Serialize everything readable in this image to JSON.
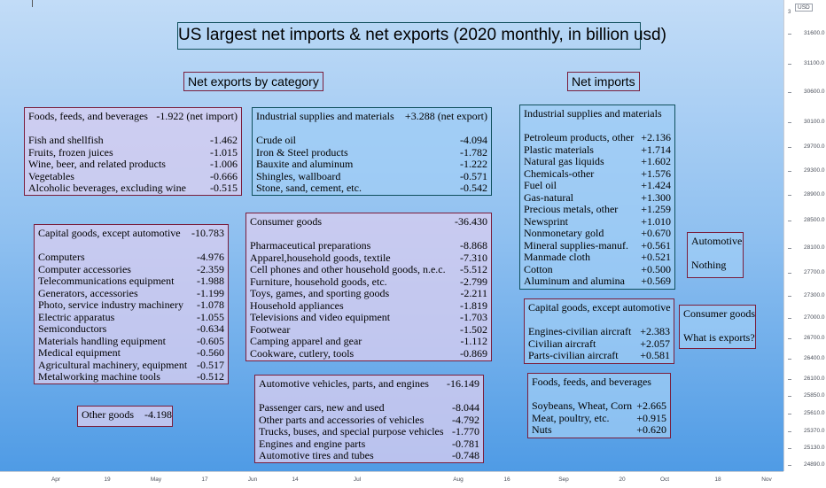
{
  "title": "US largest net imports & net exports (2020 monthly, in billion usd)",
  "sections": {
    "exports": "Net exports by category",
    "imports": "Net imports"
  },
  "price_axis": {
    "currency": "USD",
    "top": "3",
    "ticks": [
      "31600.0",
      "31100.0",
      "30600.0",
      "30100.0",
      "29700.0",
      "29300.0",
      "28900.0",
      "28500.0",
      "28100.0",
      "27700.0",
      "27300.0",
      "27000.0",
      "26700.0",
      "26400.0",
      "26100.0",
      "25850.0",
      "25610.0",
      "25370.0",
      "25130.0",
      "24890.0"
    ]
  },
  "time_axis": {
    "ticks": [
      "Apr",
      "19",
      "May",
      "17",
      "Jun",
      "14",
      "Jul",
      "Aug",
      "16",
      "Sep",
      "20",
      "Oct",
      "18",
      "Nov"
    ]
  },
  "boxes": {
    "foods_export": {
      "header": {
        "name": "Foods, feeds, and beverages",
        "value": "-1.922 (net import)"
      },
      "rows": [
        {
          "name": "Fish and shellfish",
          "value": "-1.462"
        },
        {
          "name": "Fruits, frozen juices",
          "value": "-1.015"
        },
        {
          "name": "Wine, beer, and related products",
          "value": "-1.006"
        },
        {
          "name": "Vegetables",
          "value": "-0.666"
        },
        {
          "name": "Alcoholic beverages, excluding wine",
          "value": "-0.515"
        }
      ]
    },
    "industrial_export": {
      "header": {
        "name": "Industrial supplies and materials",
        "value": "+3.288 (net export)"
      },
      "rows": [
        {
          "name": "Crude oil",
          "value": "-4.094"
        },
        {
          "name": "Iron & Steel products",
          "value": "-1.782"
        },
        {
          "name": "Bauxite and aluminum",
          "value": "-1.222"
        },
        {
          "name": "Shingles, wallboard",
          "value": "-0.571"
        },
        {
          "name": "Stone, sand, cement, etc.",
          "value": "-0.542"
        }
      ]
    },
    "capital_export": {
      "header": {
        "name": "Capital goods, except automotive",
        "value": "-10.783"
      },
      "rows": [
        {
          "name": "Computers",
          "value": "-4.976"
        },
        {
          "name": "Computer accessories",
          "value": "-2.359"
        },
        {
          "name": "Telecommunications equipment",
          "value": "-1.988"
        },
        {
          "name": "Generators, accessories",
          "value": "-1.199"
        },
        {
          "name": "Photo, service industry machinery",
          "value": "-1.078"
        },
        {
          "name": "Electric apparatus",
          "value": "-1.055"
        },
        {
          "name": "Semiconductors",
          "value": "-0.634"
        },
        {
          "name": "Materials handling equipment",
          "value": "-0.605"
        },
        {
          "name": "Medical equipment",
          "value": "-0.560"
        },
        {
          "name": "Agricultural machinery, equipment",
          "value": "-0.517"
        },
        {
          "name": "Metalworking machine tools",
          "value": "-0.512"
        }
      ]
    },
    "consumer_export": {
      "header": {
        "name": "Consumer goods",
        "value": "-36.430"
      },
      "rows": [
        {
          "name": "Pharmaceutical preparations",
          "value": "-8.868"
        },
        {
          "name": "Apparel,household goods, textile",
          "value": "-7.310"
        },
        {
          "name": "Cell phones and other household goods, n.e.c.",
          "value": "-5.512"
        },
        {
          "name": "Furniture, household goods, etc.",
          "value": "-2.799"
        },
        {
          "name": "Toys, games, and sporting goods",
          "value": "-2.211"
        },
        {
          "name": "Household appliances",
          "value": "-1.819"
        },
        {
          "name": "Televisions and video equipment",
          "value": "-1.703"
        },
        {
          "name": "Footwear",
          "value": "-1.502"
        },
        {
          "name": "Camping apparel and gear",
          "value": "-1.112"
        },
        {
          "name": "Cookware, cutlery, tools",
          "value": "-0.869"
        }
      ]
    },
    "other_export": {
      "header": {
        "name": "Other goods",
        "value": "-4.198"
      }
    },
    "automotive_export": {
      "header": {
        "name": "Automotive vehicles, parts, and engines",
        "value": "-16.149"
      },
      "rows": [
        {
          "name": "Passenger cars, new and used",
          "value": "-8.044"
        },
        {
          "name": "Other parts and accessories of vehicles",
          "value": "-4.792"
        },
        {
          "name": "Trucks, buses, and special purpose vehicles",
          "value": "-1.770"
        },
        {
          "name": "Engines and engine parts",
          "value": "-0.781"
        },
        {
          "name": "Automotive tires and tubes",
          "value": "-0.748"
        }
      ]
    },
    "industrial_import": {
      "header": {
        "name": "Industrial supplies and materials",
        "value": ""
      },
      "rows": [
        {
          "name": "Petroleum products, other",
          "value": "+2.136"
        },
        {
          "name": "Plastic materials",
          "value": "+1.714"
        },
        {
          "name": "Natural gas liquids",
          "value": "+1.602"
        },
        {
          "name": "Chemicals-other",
          "value": "+1.576"
        },
        {
          "name": "Fuel oil",
          "value": "+1.424"
        },
        {
          "name": "Gas-natural",
          "value": "+1.300"
        },
        {
          "name": "Precious metals, other",
          "value": "+1.259"
        },
        {
          "name": "Newsprint",
          "value": "+1.010"
        },
        {
          "name": "Nonmonetary gold",
          "value": "+0.670"
        },
        {
          "name": "Mineral supplies-manuf.",
          "value": "+0.561"
        },
        {
          "name": "Manmade cloth",
          "value": "+0.521"
        },
        {
          "name": "Cotton",
          "value": "+0.500"
        },
        {
          "name": "Aluminum and alumina",
          "value": "+0.569"
        }
      ]
    },
    "automotive_import": {
      "header": {
        "name": "Automotive",
        "value": ""
      },
      "rows": [
        {
          "name": "Nothing",
          "value": ""
        }
      ]
    },
    "capital_import": {
      "header": {
        "name": "Capital goods, except automotive",
        "value": ""
      },
      "rows": [
        {
          "name": "Engines-civilian aircraft",
          "value": "+2.383"
        },
        {
          "name": "Civilian aircraft",
          "value": "+2.057"
        },
        {
          "name": "Parts-civilian aircraft",
          "value": "+0.581"
        }
      ]
    },
    "consumer_import": {
      "header": {
        "name": "Consumer goods",
        "value": ""
      },
      "rows": [
        {
          "name": "What is exports?",
          "value": ""
        }
      ]
    },
    "foods_import": {
      "header": {
        "name": "Foods, feeds, and beverages",
        "value": ""
      },
      "rows": [
        {
          "name": "Soybeans, Wheat, Corn",
          "value": "+2.665"
        },
        {
          "name": "Meat, poultry, etc.",
          "value": "+0.915"
        },
        {
          "name": "Nuts",
          "value": "+0.620"
        }
      ]
    }
  }
}
